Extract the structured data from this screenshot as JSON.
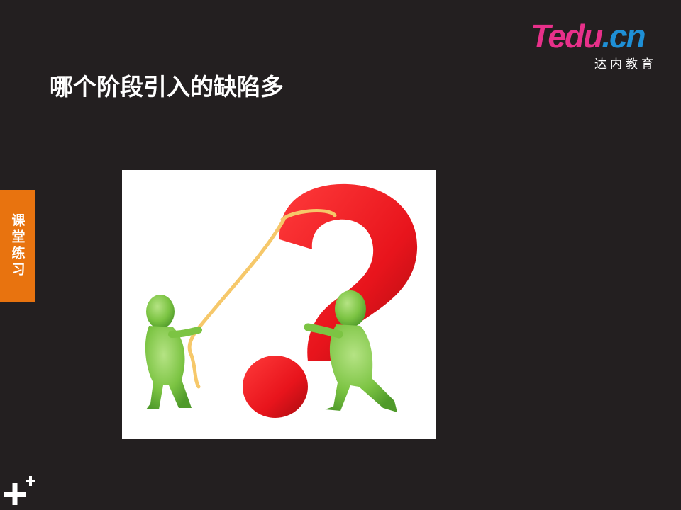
{
  "logo": {
    "t": "T",
    "rest": "edu",
    "cn": ".cn",
    "subtitle": "达内教育"
  },
  "slide": {
    "title": "哪个阶段引入的缺陷多"
  },
  "side_tab": {
    "label": "课堂练习"
  },
  "illustration": {
    "icon": "question-mark-figures-illustration"
  },
  "corner": {
    "icon": "plus-icon"
  },
  "colors": {
    "background": "#231f20",
    "side_tab": "#e8730f",
    "brand_pink": "#e8308a",
    "brand_blue": "#1e8fd6",
    "question_mark": "#e8141c",
    "figure": "#7cc443"
  }
}
